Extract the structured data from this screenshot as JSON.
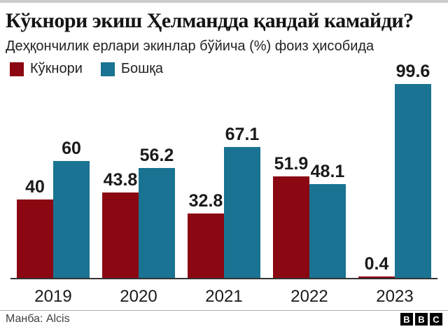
{
  "page": {
    "title": "Кўкнори экиш Ҳелмандда қандай камайди?",
    "subtitle": "Деҳқончилик ерлари экинлар бўйича (%) фоиз ҳисобида",
    "source": "Манба: Alcis",
    "logo_letters": [
      "B",
      "B",
      "C"
    ]
  },
  "colors": {
    "poppy_red": "#8B0712",
    "other_blue": "#1A7392",
    "axis": "#333333",
    "text_dark": "#1a1a1a"
  },
  "legend": [
    {
      "label": "Кўкнори",
      "color": "#8B0712"
    },
    {
      "label": "Бошқа",
      "color": "#1A7392"
    }
  ],
  "chart_data": {
    "type": "bar",
    "title": "Кўкнори экиш Ҳелмандда қандай камайди?",
    "subtitle": "Деҳқончилик ерлари экинлар бўйича (%) фоиз ҳисобида",
    "categories": [
      "2019",
      "2020",
      "2021",
      "2022",
      "2023"
    ],
    "series": [
      {
        "name": "Кўкнори",
        "color": "#8B0712",
        "values": [
          40,
          43.8,
          32.8,
          51.9,
          0.4
        ],
        "labels": [
          "40",
          "43.8",
          "32.8",
          "51.9",
          "0.4"
        ]
      },
      {
        "name": "Бошқа",
        "color": "#1A7392",
        "values": [
          60,
          56.2,
          67.1,
          48.1,
          99.6
        ],
        "labels": [
          "60",
          "56.2",
          "67.1",
          "48.1",
          "99.6"
        ]
      }
    ],
    "xlabel": "",
    "ylabel": "",
    "ylim": [
      0,
      100
    ],
    "grid": false,
    "value_labels": true,
    "legend_position": "top-left",
    "source": "Манба: Alcis"
  }
}
